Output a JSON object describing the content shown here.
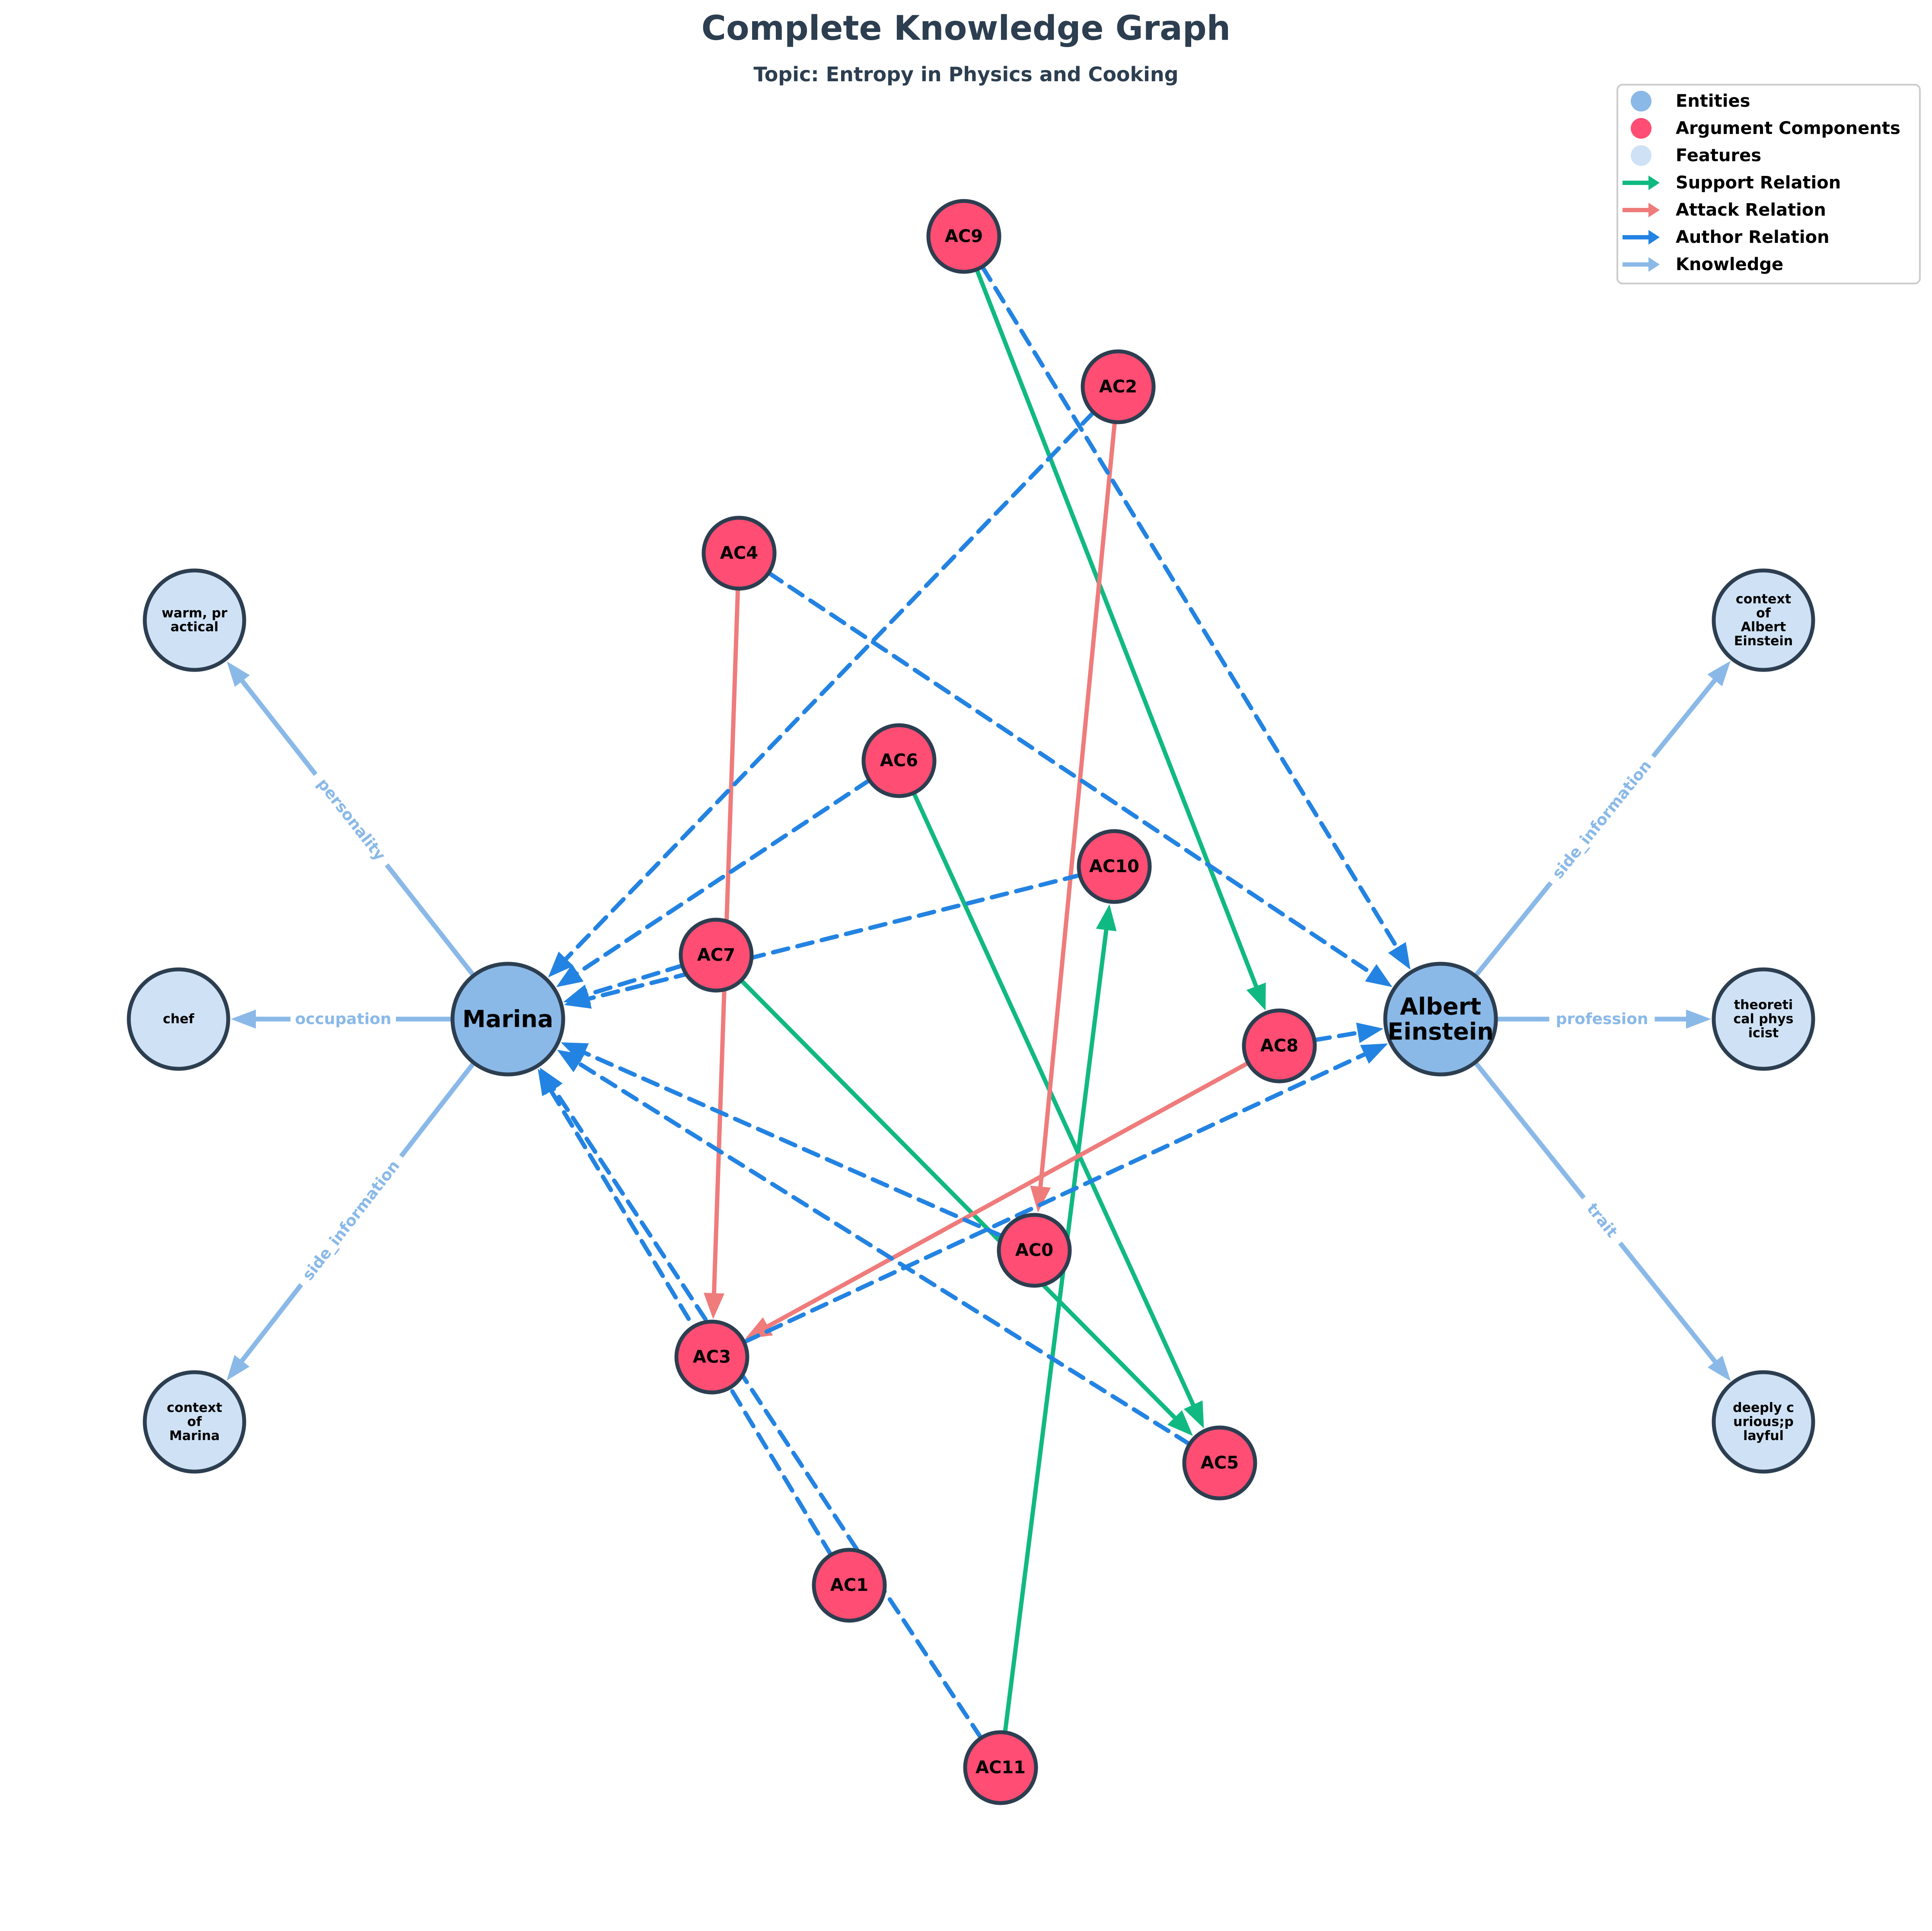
{
  "title": "Complete Knowledge Graph",
  "subtitle": "Topic: Entropy in Physics and Cooking",
  "colors": {
    "entity": "#8ab9e8",
    "argument": "#ff4d73",
    "feature": "#cfe2f5",
    "node_stroke": "#2c3e50",
    "support": "#10b981",
    "attack": "#ef7b7b",
    "author": "#2383e2",
    "knowledge": "#8ab9e8"
  },
  "legend": [
    {
      "kind": "dot",
      "color": "#8ab9e8",
      "label": "Entities"
    },
    {
      "kind": "dot",
      "color": "#ff4d73",
      "label": "Argument Components"
    },
    {
      "kind": "dot",
      "color": "#cfe2f5",
      "label": "Features"
    },
    {
      "kind": "arrow",
      "color": "#10b981",
      "label": "Support Relation"
    },
    {
      "kind": "arrow",
      "color": "#ef7b7b",
      "label": "Attack Relation"
    },
    {
      "kind": "arrow",
      "color": "#2383e2",
      "label": "Author Relation"
    },
    {
      "kind": "arrow",
      "color": "#8ab9e8",
      "label": "Knowledge"
    }
  ],
  "nodes": [
    {
      "id": "marina",
      "type": "entity",
      "label": "Marina"
    },
    {
      "id": "einstein",
      "type": "entity",
      "label": "Albert\nEinstein"
    },
    {
      "id": "AC0",
      "type": "argument",
      "label": "AC0"
    },
    {
      "id": "AC1",
      "type": "argument",
      "label": "AC1"
    },
    {
      "id": "AC2",
      "type": "argument",
      "label": "AC2"
    },
    {
      "id": "AC3",
      "type": "argument",
      "label": "AC3"
    },
    {
      "id": "AC4",
      "type": "argument",
      "label": "AC4"
    },
    {
      "id": "AC5",
      "type": "argument",
      "label": "AC5"
    },
    {
      "id": "AC6",
      "type": "argument",
      "label": "AC6"
    },
    {
      "id": "AC7",
      "type": "argument",
      "label": "AC7"
    },
    {
      "id": "AC8",
      "type": "argument",
      "label": "AC8"
    },
    {
      "id": "AC9",
      "type": "argument",
      "label": "AC9"
    },
    {
      "id": "AC10",
      "type": "argument",
      "label": "AC10"
    },
    {
      "id": "AC11",
      "type": "argument",
      "label": "AC11"
    },
    {
      "id": "f_warm",
      "type": "feature",
      "label": "warm, pr\nactical"
    },
    {
      "id": "f_chef",
      "type": "feature",
      "label": "chef"
    },
    {
      "id": "f_ctx_marina",
      "type": "feature",
      "label": "context\nof\nMarina"
    },
    {
      "id": "f_ctx_einstein",
      "type": "feature",
      "label": "context\nof\nAlbert\nEinstein"
    },
    {
      "id": "f_theoretical",
      "type": "feature",
      "label": "theoreti\ncal phys\nicist"
    },
    {
      "id": "f_curious",
      "type": "feature",
      "label": "deeply c\nurious;p\nlayful"
    }
  ],
  "edges": [
    {
      "from": "marina",
      "to": "f_warm",
      "type": "knowledge",
      "label": "personality"
    },
    {
      "from": "marina",
      "to": "f_chef",
      "type": "knowledge",
      "label": "occupation"
    },
    {
      "from": "marina",
      "to": "f_ctx_marina",
      "type": "knowledge",
      "label": "side_information"
    },
    {
      "from": "einstein",
      "to": "f_ctx_einstein",
      "type": "knowledge",
      "label": "side_information"
    },
    {
      "from": "einstein",
      "to": "f_theoretical",
      "type": "knowledge",
      "label": "profession"
    },
    {
      "from": "einstein",
      "to": "f_curious",
      "type": "knowledge",
      "label": "trait"
    },
    {
      "from": "AC9",
      "to": "AC8",
      "type": "support"
    },
    {
      "from": "AC6",
      "to": "AC5",
      "type": "support"
    },
    {
      "from": "AC7",
      "to": "AC5",
      "type": "support"
    },
    {
      "from": "AC11",
      "to": "AC10",
      "type": "support"
    },
    {
      "from": "AC2",
      "to": "AC0",
      "type": "attack"
    },
    {
      "from": "AC4",
      "to": "AC3",
      "type": "attack"
    },
    {
      "from": "AC8",
      "to": "AC3",
      "type": "attack"
    },
    {
      "from": "AC9",
      "to": "einstein",
      "type": "author"
    },
    {
      "from": "AC4",
      "to": "einstein",
      "type": "author"
    },
    {
      "from": "AC8",
      "to": "einstein",
      "type": "author"
    },
    {
      "from": "AC3",
      "to": "einstein",
      "type": "author"
    },
    {
      "from": "AC2",
      "to": "marina",
      "type": "author"
    },
    {
      "from": "AC6",
      "to": "marina",
      "type": "author"
    },
    {
      "from": "AC10",
      "to": "marina",
      "type": "author"
    },
    {
      "from": "AC7",
      "to": "marina",
      "type": "author"
    },
    {
      "from": "AC0",
      "to": "marina",
      "type": "author"
    },
    {
      "from": "AC5",
      "to": "marina",
      "type": "author"
    },
    {
      "from": "AC1",
      "to": "marina",
      "type": "author"
    },
    {
      "from": "AC11",
      "to": "marina",
      "type": "author"
    }
  ]
}
